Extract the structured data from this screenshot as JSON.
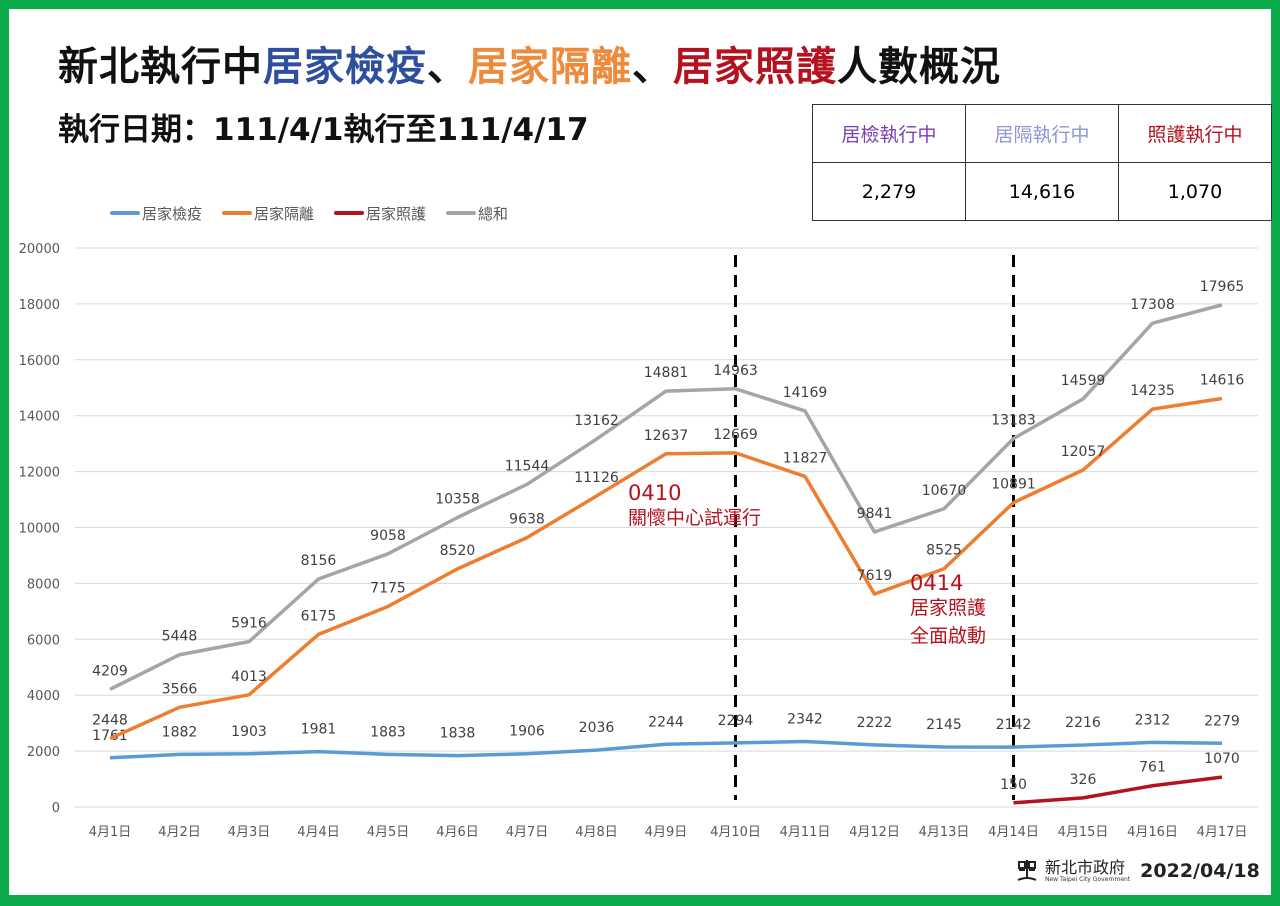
{
  "header": {
    "title_parts": [
      "新北執行中",
      "居家檢疫",
      "、",
      "居家隔離",
      "、",
      "居家照護",
      "人數概況"
    ],
    "subtitle": "執行日期：111/4/1執行至111/4/17"
  },
  "kpi": {
    "headers": [
      "居檢執行中",
      "居隔執行中",
      "照護執行中"
    ],
    "values": [
      "2,279",
      "14,616",
      "1,070"
    ]
  },
  "footer": {
    "org": "新北市政府",
    "org_en": "New Taipei City Government",
    "date": "2022/04/18"
  },
  "chart_data": {
    "type": "line",
    "categories": [
      "4月1日",
      "4月2日",
      "4月3日",
      "4月4日",
      "4月5日",
      "4月6日",
      "4月7日",
      "4月8日",
      "4月9日",
      "4月10日",
      "4月11日",
      "4月12日",
      "4月13日",
      "4月14日",
      "4月15日",
      "4月16日",
      "4月17日"
    ],
    "ylim": [
      0,
      20000
    ],
    "yticks": [
      0,
      2000,
      4000,
      6000,
      8000,
      10000,
      12000,
      14000,
      16000,
      18000,
      20000
    ],
    "grid": true,
    "legend_position": "top-left",
    "series": [
      {
        "name": "居家檢疫",
        "color": "#5b9bd5",
        "values": [
          1761,
          1882,
          1903,
          1981,
          1883,
          1838,
          1906,
          2036,
          2244,
          2294,
          2342,
          2222,
          2145,
          2142,
          2216,
          2312,
          2279
        ]
      },
      {
        "name": "居家隔離",
        "color": "#ed7d31",
        "values": [
          2448,
          3566,
          4013,
          6175,
          7175,
          8520,
          9638,
          11126,
          12637,
          12669,
          11827,
          7619,
          8525,
          10891,
          12057,
          14235,
          14616
        ]
      },
      {
        "name": "居家照護",
        "color": "#b3121e",
        "values": [
          null,
          null,
          null,
          null,
          null,
          null,
          null,
          null,
          null,
          null,
          null,
          null,
          null,
          150,
          326,
          761,
          1070
        ]
      },
      {
        "name": "總和",
        "color": "#a5a5a5",
        "values": [
          4209,
          5448,
          5916,
          8156,
          9058,
          10358,
          11544,
          13162,
          14881,
          14963,
          14169,
          9841,
          10670,
          13183,
          14599,
          17308,
          17965
        ]
      }
    ],
    "annotations": [
      {
        "at": "4月10日",
        "lines": [
          "0410",
          "關懷中心試運行"
        ]
      },
      {
        "at": "4月14日",
        "lines": [
          "0414",
          "居家照護",
          "全面啟動"
        ]
      }
    ]
  }
}
